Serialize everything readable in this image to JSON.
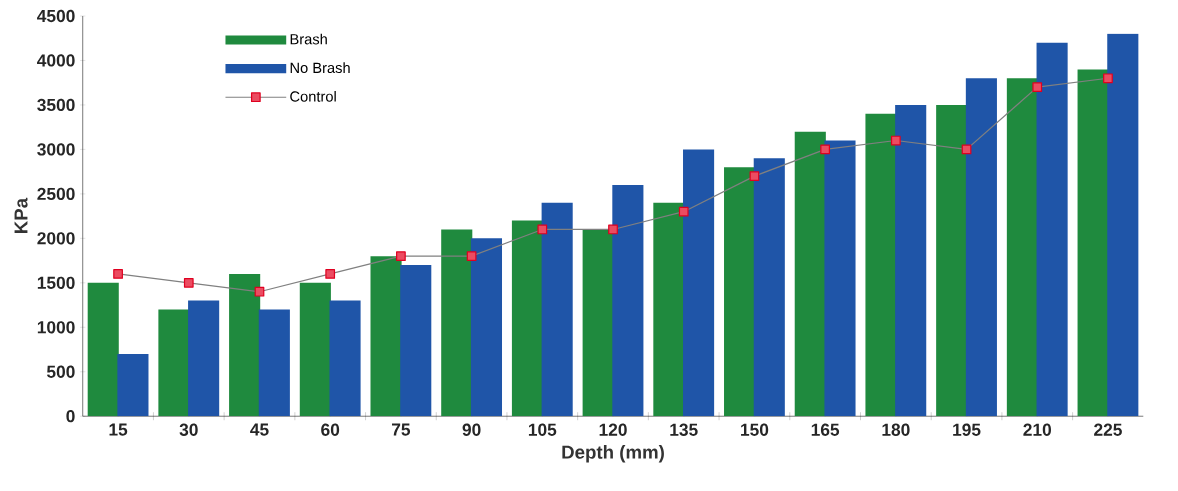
{
  "chart_data": {
    "type": "bar",
    "xlabel": "Depth (mm)",
    "ylabel": "KPa",
    "categories": [
      "15",
      "30",
      "45",
      "60",
      "75",
      "90",
      "105",
      "120",
      "135",
      "150",
      "165",
      "180",
      "195",
      "210",
      "225"
    ],
    "series": [
      {
        "name": "Brash",
        "color": "#1f8a3e",
        "values": [
          1500,
          1200,
          1600,
          1500,
          1800,
          2100,
          2200,
          2100,
          2400,
          2800,
          3200,
          3400,
          3500,
          3800,
          3900
        ]
      },
      {
        "name": "No Brash",
        "color": "#1f55a8",
        "values": [
          700,
          1300,
          1200,
          1300,
          1700,
          2000,
          2400,
          2600,
          3000,
          2900,
          3100,
          3500,
          3800,
          4200,
          4300
        ]
      },
      {
        "name": "Control",
        "type": "line",
        "color": "#808080",
        "marker": "square",
        "values": [
          1600,
          1500,
          1400,
          1600,
          1800,
          1800,
          2100,
          2100,
          2300,
          2700,
          3000,
          3100,
          3000,
          3700,
          3800
        ]
      }
    ],
    "ylim": [
      0,
      4500
    ],
    "yticks": [
      0,
      500,
      1000,
      1500,
      2000,
      2500,
      3000,
      3500,
      4000,
      4500
    ],
    "legend": "top left",
    "grid": false
  }
}
